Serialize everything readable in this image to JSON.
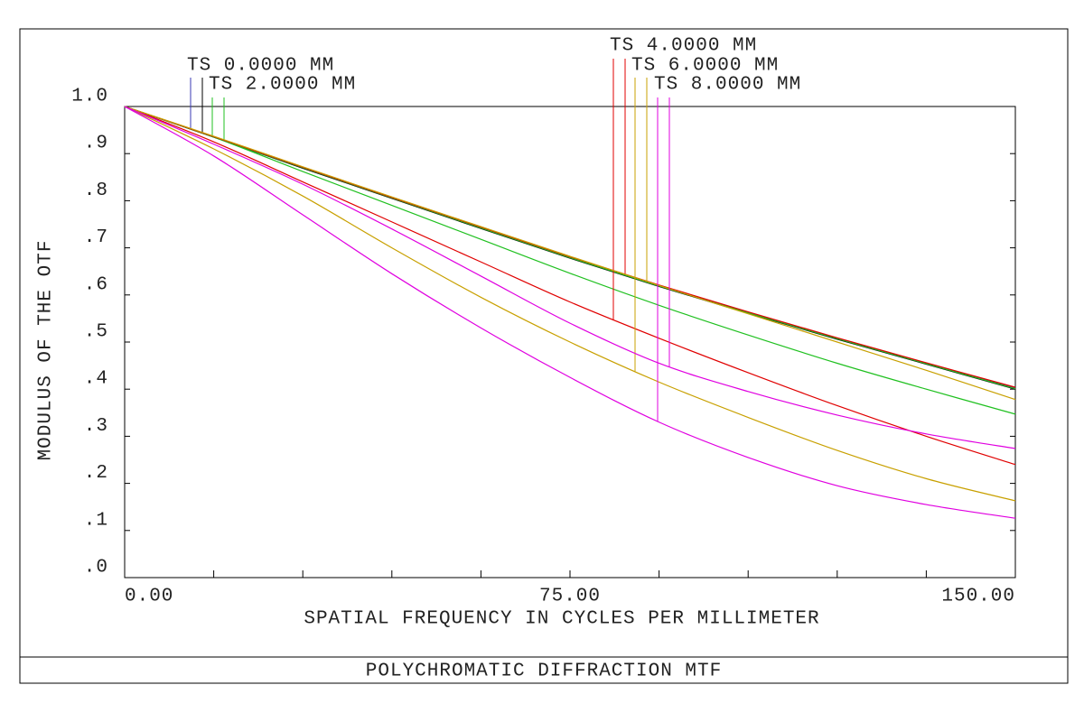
{
  "chart_data": {
    "type": "line",
    "title": "POLYCHROMATIC DIFFRACTION MTF",
    "x_label": "SPATIAL FREQUENCY IN CYCLES PER MILLIMETER",
    "y_label": "MODULUS OF THE OTF",
    "x": [
      0,
      15,
      30,
      45,
      60,
      75,
      90,
      105,
      120,
      135,
      150
    ],
    "xlim": [
      0,
      150
    ],
    "xticks": [
      {
        "value": 0,
        "label": "0.00"
      },
      {
        "value": 15,
        "label": null
      },
      {
        "value": 30,
        "label": null
      },
      {
        "value": 45,
        "label": null
      },
      {
        "value": 60,
        "label": null
      },
      {
        "value": 75,
        "label": "75.00"
      },
      {
        "value": 90,
        "label": null
      },
      {
        "value": 105,
        "label": null
      },
      {
        "value": 120,
        "label": null
      },
      {
        "value": 135,
        "label": null
      },
      {
        "value": 150,
        "label": "150.00"
      }
    ],
    "ylim": [
      0,
      1
    ],
    "yticks": [
      {
        "value": 0,
        "label": ".0"
      },
      {
        "value": 0.1,
        "label": ".1"
      },
      {
        "value": 0.2,
        "label": ".2"
      },
      {
        "value": 0.3,
        "label": ".3"
      },
      {
        "value": 0.4,
        "label": ".4"
      },
      {
        "value": 0.5,
        "label": ".5"
      },
      {
        "value": 0.6,
        "label": ".6"
      },
      {
        "value": 0.7,
        "label": ".7"
      },
      {
        "value": 0.8,
        "label": ".8"
      },
      {
        "value": 0.9,
        "label": ".9"
      },
      {
        "value": 1,
        "label": "1.0"
      }
    ],
    "series": [
      {
        "name": "TS 0.0000 MM",
        "tangential": {
          "color": "#3a3ab4",
          "values": [
            1.0,
            0.935,
            0.87,
            0.806,
            0.743,
            0.68,
            0.62,
            0.563,
            0.508,
            0.455,
            0.403
          ]
        },
        "sagittal": {
          "color": "#000000",
          "values": [
            1.0,
            0.935,
            0.869,
            0.805,
            0.741,
            0.678,
            0.618,
            0.561,
            0.506,
            0.453,
            0.4
          ]
        }
      },
      {
        "name": "TS 2.0000 MM",
        "tangential": {
          "color": "#20c020",
          "values": [
            1.0,
            0.935,
            0.862,
            0.79,
            0.718,
            0.646,
            0.578,
            0.515,
            0.455,
            0.4,
            0.347
          ]
        },
        "sagittal": {
          "color": "#20c020",
          "values": [
            1.0,
            0.935,
            0.87,
            0.806,
            0.742,
            0.679,
            0.619,
            0.562,
            0.507,
            0.454,
            0.401
          ]
        }
      },
      {
        "name": "TS 4.0000 MM",
        "tangential": {
          "color": "#e00000",
          "values": [
            1.0,
            0.925,
            0.84,
            0.755,
            0.67,
            0.585,
            0.508,
            0.435,
            0.365,
            0.3,
            0.24
          ]
        },
        "sagittal": {
          "color": "#e00000",
          "values": [
            1.0,
            0.936,
            0.871,
            0.807,
            0.744,
            0.681,
            0.621,
            0.564,
            0.509,
            0.456,
            0.404
          ]
        }
      },
      {
        "name": "TS 6.0000 MM",
        "tangential": {
          "color": "#c8a000",
          "values": [
            1.0,
            0.91,
            0.81,
            0.7,
            0.595,
            0.5,
            0.415,
            0.34,
            0.27,
            0.21,
            0.163
          ]
        },
        "sagittal": {
          "color": "#c8a000",
          "values": [
            1.0,
            0.937,
            0.872,
            0.808,
            0.745,
            0.682,
            0.62,
            0.56,
            0.5,
            0.44,
            0.378
          ]
        }
      },
      {
        "name": "TS 8.0000 MM",
        "tangential": {
          "color": "#e000e0",
          "values": [
            1.0,
            0.895,
            0.77,
            0.645,
            0.53,
            0.425,
            0.33,
            0.255,
            0.195,
            0.155,
            0.126
          ]
        },
        "sagittal": {
          "color": "#e000e0",
          "values": [
            1.0,
            0.92,
            0.835,
            0.74,
            0.64,
            0.54,
            0.455,
            0.395,
            0.345,
            0.305,
            0.274
          ]
        }
      }
    ]
  }
}
